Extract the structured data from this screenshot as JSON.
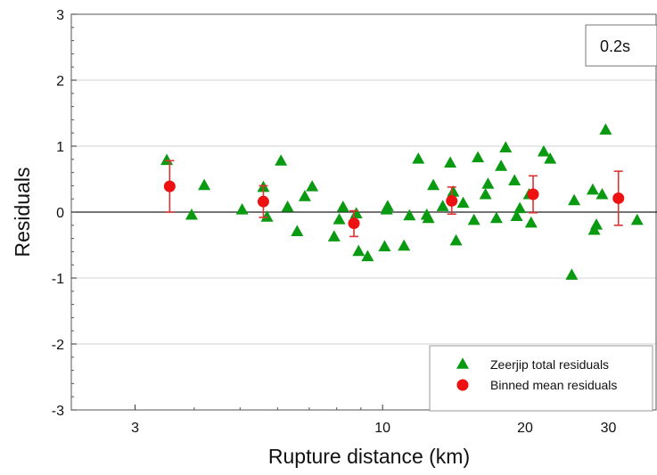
{
  "chart_data": {
    "type": "scatter",
    "title": "",
    "xlabel": "Rupture distance (km)",
    "ylabel": "Residuals",
    "xscale": "log",
    "xlim": [
      2.2,
      38
    ],
    "ylim": [
      -3,
      3
    ],
    "x_ticks": [
      3,
      10,
      20,
      30
    ],
    "y_ticks": [
      -3,
      -2,
      -1,
      0,
      1,
      2,
      3
    ],
    "x_tick_labels": [
      "3",
      "10",
      "20",
      "30"
    ],
    "y_tick_labels": [
      "-3",
      "-2",
      "-1",
      "0",
      "1",
      "2",
      "3"
    ],
    "grid": "horizontal",
    "annotation": "0.2s",
    "legend_position": "bottom-right",
    "series": [
      {
        "name": "Zeerjip total residuals",
        "marker": "triangle",
        "color": "#0a9a12",
        "points": [
          [
            3.5,
            0.78
          ],
          [
            3.95,
            -0.05
          ],
          [
            4.2,
            0.4
          ],
          [
            5.05,
            0.03
          ],
          [
            5.6,
            0.37
          ],
          [
            5.7,
            -0.08
          ],
          [
            6.1,
            0.77
          ],
          [
            6.3,
            0.07
          ],
          [
            6.6,
            -0.3
          ],
          [
            6.85,
            0.23
          ],
          [
            7.1,
            0.38
          ],
          [
            7.9,
            -0.38
          ],
          [
            8.1,
            -0.12
          ],
          [
            8.25,
            0.07
          ],
          [
            8.8,
            -0.03
          ],
          [
            8.9,
            -0.6
          ],
          [
            9.3,
            -0.68
          ],
          [
            10.1,
            -0.53
          ],
          [
            10.2,
            0.03
          ],
          [
            10.25,
            0.08
          ],
          [
            11.1,
            -0.52
          ],
          [
            11.4,
            -0.06
          ],
          [
            11.9,
            0.8
          ],
          [
            12.4,
            -0.05
          ],
          [
            12.5,
            -0.1
          ],
          [
            12.8,
            0.4
          ],
          [
            13.4,
            0.08
          ],
          [
            13.9,
            0.74
          ],
          [
            14.1,
            0.3
          ],
          [
            14.3,
            -0.44
          ],
          [
            14.8,
            0.13
          ],
          [
            15.6,
            -0.13
          ],
          [
            15.9,
            0.82
          ],
          [
            16.5,
            0.26
          ],
          [
            16.7,
            0.42
          ],
          [
            17.4,
            -0.1
          ],
          [
            17.8,
            0.69
          ],
          [
            18.2,
            0.97
          ],
          [
            19.0,
            0.47
          ],
          [
            19.2,
            -0.07
          ],
          [
            19.5,
            0.05
          ],
          [
            20.4,
            0.26
          ],
          [
            20.6,
            -0.17
          ],
          [
            21.9,
            0.91
          ],
          [
            22.6,
            0.8
          ],
          [
            25.1,
            -0.96
          ],
          [
            25.4,
            0.17
          ],
          [
            27.8,
            0.33
          ],
          [
            28.0,
            -0.28
          ],
          [
            28.3,
            -0.2
          ],
          [
            29.1,
            0.26
          ],
          [
            29.6,
            1.24
          ],
          [
            34.5,
            -0.13
          ]
        ]
      },
      {
        "name": "Binned mean residuals",
        "marker": "circle",
        "color": "#ee1111",
        "errorbar_color": "#dd3333",
        "points": [
          {
            "x": 3.55,
            "y": 0.39,
            "ylow": 0.0,
            "yhigh": 0.78
          },
          {
            "x": 5.6,
            "y": 0.16,
            "ylow": -0.08,
            "yhigh": 0.4
          },
          {
            "x": 8.7,
            "y": -0.17,
            "ylow": -0.37,
            "yhigh": 0.02
          },
          {
            "x": 14.0,
            "y": 0.17,
            "ylow": -0.03,
            "yhigh": 0.38
          },
          {
            "x": 20.8,
            "y": 0.27,
            "ylow": -0.01,
            "yhigh": 0.55
          },
          {
            "x": 31.5,
            "y": 0.21,
            "ylow": -0.2,
            "yhigh": 0.62
          }
        ]
      }
    ]
  }
}
